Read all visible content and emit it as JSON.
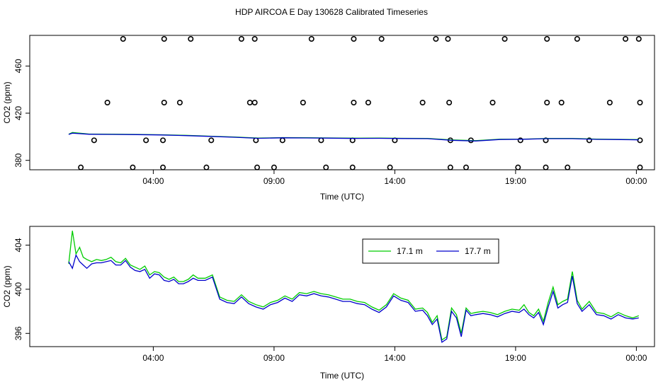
{
  "title": "HDP AIRCOA E  Day 130628  Calibrated Timeseries",
  "chart_data": [
    {
      "type": "scatter+line",
      "xlabel": "Time (UTC)",
      "ylabel": "CO2 (ppm)",
      "x_ticks": [
        "04:00",
        "09:00",
        "14:00",
        "19:00",
        "00:00"
      ],
      "y_ticks": [
        "380",
        "420",
        "460"
      ],
      "x_range_hours": [
        0,
        24
      ],
      "ylim": [
        372,
        486
      ],
      "grid": false,
      "line_colors": {
        "17.1 m": "#00cc00",
        "17.7 m": "#0000cc"
      },
      "calibration_points_rows": [
        {
          "value": 483,
          "hours": [
            3.4,
            5.1,
            6.2,
            8.3,
            8.85,
            11.2,
            12.95,
            14.1,
            16.35,
            16.85,
            19.2,
            20.95,
            22.2,
            24.2,
            24.75
          ]
        },
        {
          "value": 429,
          "hours": [
            2.75,
            5.1,
            5.75,
            8.65,
            8.85,
            10.85,
            12.95,
            13.55,
            15.8,
            16.9,
            18.7,
            20.95,
            21.55,
            23.55,
            24.8
          ]
        },
        {
          "value": 397,
          "hours": [
            2.2,
            4.35,
            5.05,
            7.05,
            8.9,
            10.0,
            11.6,
            12.9,
            14.65,
            16.95,
            17.8,
            19.85,
            20.9,
            22.7,
            24.8
          ]
        },
        {
          "value": 374,
          "hours": [
            1.65,
            3.8,
            5.05,
            6.85,
            8.95,
            9.65,
            11.8,
            12.9,
            14.45,
            16.95,
            17.6,
            19.75,
            20.9,
            21.8,
            24.8
          ]
        }
      ],
      "series": [
        {
          "hours": [
            1.15,
            1.3,
            2.0,
            3.0,
            4.0,
            5.0,
            6.0,
            7.0,
            8.0,
            9.0,
            10.0,
            11.0,
            12.0,
            13.0,
            14.0,
            15.0,
            16.0,
            17.0,
            18.0,
            19.0,
            20.0,
            21.0,
            22.0,
            23.0,
            24.0,
            24.75
          ],
          "values": [
            402.2,
            403.6,
            402.3,
            402.2,
            402.0,
            401.7,
            401.2,
            400.5,
            399.8,
            398.9,
            399.3,
            399.2,
            399.0,
            398.8,
            398.9,
            398.7,
            398.6,
            397.3,
            396.7,
            397.9,
            398.0,
            398.6,
            398.6,
            398.0,
            397.8,
            397.6
          ]
        },
        {
          "hours": [
            1.15,
            1.3,
            2.0,
            3.0,
            4.0,
            5.0,
            6.0,
            7.0,
            8.0,
            9.0,
            10.0,
            11.0,
            12.0,
            13.0,
            14.0,
            15.0,
            16.0,
            17.0,
            18.0,
            19.0,
            20.0,
            21.0,
            22.0,
            23.0,
            24.0,
            24.75
          ],
          "values": [
            402.0,
            403.1,
            402.1,
            402.0,
            401.8,
            401.5,
            401.0,
            400.3,
            399.6,
            398.7,
            399.1,
            399.0,
            398.8,
            398.6,
            398.7,
            398.5,
            398.4,
            397.0,
            396.4,
            397.7,
            397.9,
            398.4,
            398.4,
            397.8,
            397.6,
            397.4
          ]
        }
      ]
    },
    {
      "type": "line",
      "xlabel": "Time (UTC)",
      "ylabel": "CO2 (ppm)",
      "x_ticks": [
        "04:00",
        "09:00",
        "14:00",
        "19:00",
        "00:00"
      ],
      "y_ticks": [
        "396",
        "400",
        "404"
      ],
      "x_range_hours": [
        0,
        24
      ],
      "ylim": [
        394.8,
        405.7
      ],
      "grid": false,
      "legend_position": "top-right",
      "series": [
        {
          "name": "17.1 m",
          "color": "#00cc00",
          "hours": [
            1.15,
            1.3,
            1.45,
            1.6,
            1.75,
            1.9,
            2.1,
            2.3,
            2.5,
            2.7,
            2.9,
            3.1,
            3.3,
            3.5,
            3.7,
            3.9,
            4.1,
            4.3,
            4.5,
            4.7,
            4.9,
            5.1,
            5.3,
            5.5,
            5.7,
            5.9,
            6.1,
            6.3,
            6.5,
            6.8,
            7.1,
            7.4,
            7.7,
            8.0,
            8.3,
            8.6,
            8.9,
            9.2,
            9.5,
            9.8,
            10.1,
            10.4,
            10.7,
            11.0,
            11.3,
            11.6,
            11.9,
            12.2,
            12.5,
            12.8,
            13.1,
            13.4,
            13.7,
            14.0,
            14.3,
            14.6,
            14.9,
            15.2,
            15.5,
            15.8,
            16.0,
            16.2,
            16.4,
            16.6,
            16.8,
            17.0,
            17.2,
            17.4,
            17.6,
            17.8,
            18.0,
            18.3,
            18.6,
            18.9,
            19.2,
            19.5,
            19.8,
            20.0,
            20.2,
            20.4,
            20.6,
            20.8,
            21.0,
            21.2,
            21.4,
            21.6,
            21.8,
            22.0,
            22.2,
            22.4,
            22.7,
            23.0,
            23.3,
            23.6,
            23.9,
            24.2,
            24.5,
            24.75
          ],
          "values": [
            402.3,
            405.3,
            403.2,
            403.8,
            402.9,
            402.7,
            402.5,
            402.7,
            402.6,
            402.7,
            402.9,
            402.5,
            402.4,
            402.8,
            402.2,
            402.0,
            401.8,
            402.1,
            401.3,
            401.6,
            401.5,
            401.1,
            400.9,
            401.1,
            400.7,
            400.7,
            400.9,
            401.3,
            401.0,
            401.0,
            401.3,
            399.3,
            399.0,
            398.9,
            399.5,
            398.9,
            398.6,
            398.4,
            398.8,
            399.0,
            399.4,
            399.1,
            399.7,
            399.6,
            399.8,
            399.6,
            399.5,
            399.3,
            399.1,
            399.1,
            398.9,
            398.8,
            398.4,
            398.1,
            398.6,
            399.6,
            399.2,
            399.0,
            398.2,
            398.3,
            397.9,
            397.0,
            397.6,
            395.4,
            395.7,
            398.3,
            397.7,
            396.0,
            398.3,
            397.8,
            397.9,
            398.0,
            397.9,
            397.7,
            398.0,
            398.2,
            398.1,
            398.6,
            397.9,
            397.6,
            398.2,
            397.1,
            398.8,
            400.2,
            398.6,
            398.9,
            399.1,
            401.6,
            399.0,
            398.2,
            398.9,
            397.9,
            397.8,
            397.5,
            397.9,
            397.6,
            397.4,
            397.6
          ]
        },
        {
          "name": "17.7 m",
          "color": "#0000cc",
          "hours": [
            1.15,
            1.3,
            1.45,
            1.6,
            1.75,
            1.9,
            2.1,
            2.3,
            2.5,
            2.7,
            2.9,
            3.1,
            3.3,
            3.5,
            3.7,
            3.9,
            4.1,
            4.3,
            4.5,
            4.7,
            4.9,
            5.1,
            5.3,
            5.5,
            5.7,
            5.9,
            6.1,
            6.3,
            6.5,
            6.8,
            7.1,
            7.4,
            7.7,
            8.0,
            8.3,
            8.6,
            8.9,
            9.2,
            9.5,
            9.8,
            10.1,
            10.4,
            10.7,
            11.0,
            11.3,
            11.6,
            11.9,
            12.2,
            12.5,
            12.8,
            13.1,
            13.4,
            13.7,
            14.0,
            14.3,
            14.6,
            14.9,
            15.2,
            15.5,
            15.8,
            16.0,
            16.2,
            16.4,
            16.6,
            16.8,
            17.0,
            17.2,
            17.4,
            17.6,
            17.8,
            18.0,
            18.3,
            18.6,
            18.9,
            19.2,
            19.5,
            19.8,
            20.0,
            20.2,
            20.4,
            20.6,
            20.8,
            21.0,
            21.2,
            21.4,
            21.6,
            21.8,
            22.0,
            22.2,
            22.4,
            22.7,
            23.0,
            23.3,
            23.6,
            23.9,
            24.2,
            24.5,
            24.75
          ],
          "values": [
            402.5,
            401.9,
            403.1,
            402.5,
            402.2,
            401.9,
            402.3,
            402.4,
            402.4,
            402.5,
            402.6,
            402.2,
            402.2,
            402.6,
            402.0,
            401.7,
            401.6,
            401.8,
            401.0,
            401.4,
            401.3,
            400.8,
            400.7,
            400.9,
            400.5,
            400.5,
            400.7,
            401.0,
            400.8,
            400.8,
            401.1,
            399.1,
            398.8,
            398.7,
            399.3,
            398.7,
            398.4,
            398.2,
            398.6,
            398.8,
            399.2,
            398.9,
            399.5,
            399.4,
            399.6,
            399.4,
            399.3,
            399.1,
            398.9,
            398.9,
            398.7,
            398.6,
            398.2,
            397.9,
            398.4,
            399.4,
            399.0,
            398.8,
            398.0,
            398.1,
            397.6,
            396.8,
            397.3,
            395.2,
            395.5,
            398.0,
            397.4,
            395.7,
            398.1,
            397.6,
            397.7,
            397.8,
            397.7,
            397.5,
            397.8,
            398.0,
            397.9,
            398.2,
            397.7,
            397.4,
            397.9,
            396.8,
            398.4,
            399.8,
            398.3,
            398.6,
            398.8,
            401.2,
            398.7,
            398.0,
            398.6,
            397.7,
            397.6,
            397.3,
            397.7,
            397.4,
            397.3,
            397.4
          ]
        }
      ]
    }
  ]
}
